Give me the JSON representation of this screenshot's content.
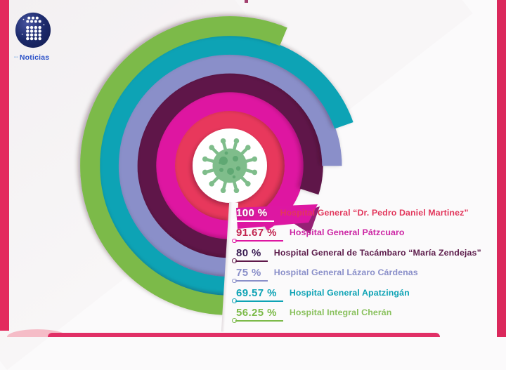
{
  "frame": {
    "left_bar_color": "#E32A5E",
    "right_bar_color": "#DB285C",
    "bottom_bar_color": "#E12F66",
    "accent_light_pink": "#F5BCC7",
    "title_remnant_color": "#A23F6E"
  },
  "logo": {
    "prefix": "•••",
    "prefix_color": "#8FB8E8",
    "text": "Noticias",
    "text_color": "#2B51C8",
    "sphere_dark": "#141E54",
    "sphere_mid": "#1C2A6B",
    "sphere_light": "#46539F"
  },
  "chart_data": {
    "type": "bar",
    "subtype": "radial-progress-rings",
    "title": "",
    "unit": "%",
    "start_angle_deg": 180,
    "sweep": "clockwise",
    "legend_position": "bottom-right",
    "center_icon": "coronavirus-icon",
    "categories": [
      "Hospital General “Dr. Pedro Daniel Martinez”",
      "Hospital General Pátzcuaro",
      "Hospital General de Tacámbaro “María Zendejas”",
      "Hospital General Lázaro Cárdenas",
      "Hospital General Apatzingán",
      "Hospital Integral Cherán"
    ],
    "values": [
      100,
      91.67,
      80,
      75,
      69.57,
      56.25
    ],
    "display_values": [
      "100 %",
      "91.67 %",
      "80 %",
      "75 %",
      "69.57 %",
      "56.25 %"
    ],
    "ring_colors": [
      "#E8395C",
      "#DE16A1",
      "#5F184A",
      "#8A8FC9",
      "#0EA3B5",
      "#7CBA49"
    ],
    "value_colors": [
      "#FFFFFF",
      "#C2244F",
      "#3A1C52",
      "#8A8FC9",
      "#0EA3B5",
      "#7CBA49"
    ],
    "name_colors": [
      "#E2375C",
      "#CC26A4",
      "#5C1C4B",
      "#8A8FC9",
      "#0EA3B5",
      "#8AC15E"
    ],
    "line_colors": [
      "#FFFFFF",
      "#DE16A1",
      "#5F184A",
      "#8A8FC9",
      "#0EA3B5",
      "#7CBA49"
    ]
  },
  "decor": {
    "banner_color": "#DD17A2",
    "banner_fold_color": "#8C0D68",
    "icon_body_color": "#7FBD8B",
    "icon_detail_color": "#5FA873",
    "center_disc_color": "#FFFFFF"
  }
}
